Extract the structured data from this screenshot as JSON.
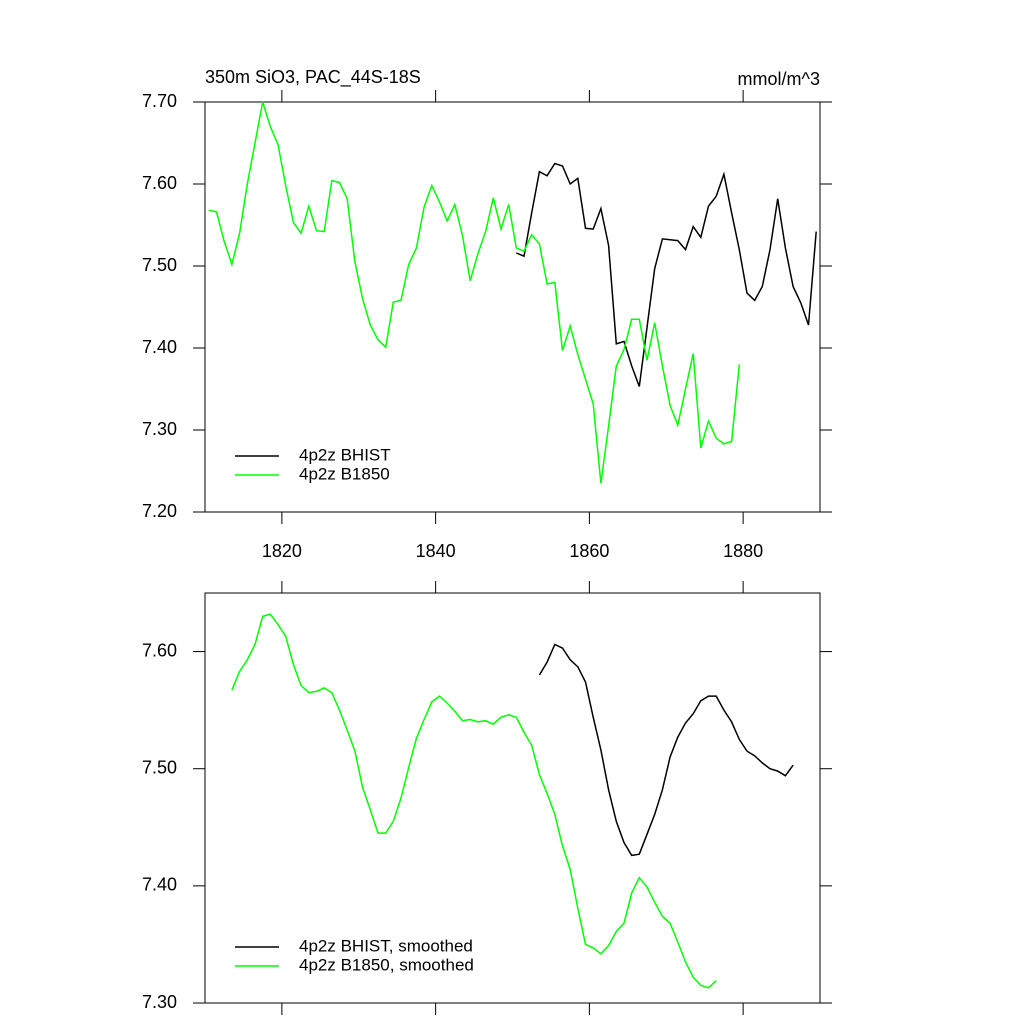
{
  "chart_data": [
    {
      "type": "line",
      "title": "350m SiO3, PAC_44S-18S",
      "units": "mmol/m^3",
      "xlim": [
        1810,
        1890
      ],
      "xticks": [
        1820,
        1840,
        1860,
        1880
      ],
      "ylim": [
        7.2,
        7.7
      ],
      "yticks": [
        {
          "value": 7.2,
          "label": "7.20"
        },
        {
          "value": 7.3,
          "label": "7.30"
        },
        {
          "value": 7.4,
          "label": "7.40"
        },
        {
          "value": 7.5,
          "label": "7.50"
        },
        {
          "value": 7.6,
          "label": "7.60"
        },
        {
          "value": 7.7,
          "label": "7.70"
        }
      ],
      "legend": "lower left",
      "series": [
        {
          "name": "4p2z BHIST",
          "color": "#000000",
          "x": [
            1850.5,
            1851.5,
            1852.5,
            1853.5,
            1854.5,
            1855.5,
            1856.5,
            1857.5,
            1858.5,
            1859.5,
            1860.5,
            1861.5,
            1862.5,
            1863.5,
            1864.5,
            1865.5,
            1866.5,
            1867.5,
            1868.5,
            1869.5,
            1870.5,
            1871.5,
            1872.5,
            1873.5,
            1874.5,
            1875.5,
            1876.5,
            1877.5,
            1878.5,
            1879.5,
            1880.5,
            1881.5,
            1882.5,
            1883.5,
            1884.5,
            1885.5,
            1886.5,
            1887.5,
            1888.5,
            1889.5
          ],
          "values": [
            7.516,
            7.512,
            7.565,
            7.615,
            7.61,
            7.625,
            7.622,
            7.6,
            7.607,
            7.546,
            7.545,
            7.57,
            7.525,
            7.405,
            7.408,
            7.378,
            7.353,
            7.425,
            7.497,
            7.533,
            7.532,
            7.531,
            7.52,
            7.548,
            7.535,
            7.573,
            7.585,
            7.612,
            7.565,
            7.52,
            7.467,
            7.458,
            7.475,
            7.52,
            7.582,
            7.522,
            7.475,
            7.455,
            7.428,
            7.542
          ]
        },
        {
          "name": "4p2z B1850",
          "color": "#00ff00",
          "x": [
            1810.5,
            1811.5,
            1812.5,
            1813.5,
            1814.5,
            1815.5,
            1816.5,
            1817.5,
            1818.5,
            1819.5,
            1820.5,
            1821.5,
            1822.5,
            1823.5,
            1824.5,
            1825.5,
            1826.5,
            1827.5,
            1828.5,
            1829.5,
            1830.5,
            1831.5,
            1832.5,
            1833.5,
            1834.5,
            1835.5,
            1836.5,
            1837.5,
            1838.5,
            1839.5,
            1840.5,
            1841.5,
            1842.5,
            1843.5,
            1844.5,
            1845.5,
            1846.5,
            1847.5,
            1848.5,
            1849.5,
            1850.5,
            1851.5,
            1852.5,
            1853.5,
            1854.5,
            1855.5,
            1856.5,
            1857.5,
            1858.5,
            1859.5,
            1860.5,
            1861.5,
            1862.5,
            1863.5,
            1864.5,
            1865.5,
            1866.5,
            1867.5,
            1868.5,
            1869.5,
            1870.5,
            1871.5,
            1872.5,
            1873.5,
            1874.5,
            1875.5,
            1876.5,
            1877.5,
            1878.5,
            1879.5
          ],
          "values": [
            7.568,
            7.566,
            7.53,
            7.502,
            7.54,
            7.6,
            7.65,
            7.7,
            7.67,
            7.648,
            7.598,
            7.553,
            7.54,
            7.573,
            7.543,
            7.542,
            7.604,
            7.602,
            7.582,
            7.505,
            7.46,
            7.428,
            7.41,
            7.401,
            7.456,
            7.458,
            7.502,
            7.522,
            7.572,
            7.598,
            7.578,
            7.555,
            7.575,
            7.537,
            7.482,
            7.515,
            7.542,
            7.583,
            7.545,
            7.575,
            7.522,
            7.518,
            7.538,
            7.527,
            7.478,
            7.48,
            7.397,
            7.427,
            7.392,
            7.362,
            7.332,
            7.235,
            7.305,
            7.378,
            7.398,
            7.435,
            7.435,
            7.385,
            7.431,
            7.378,
            7.33,
            7.306,
            7.35,
            7.393,
            7.278,
            7.311,
            7.29,
            7.283,
            7.286,
            7.38
          ]
        }
      ]
    },
    {
      "type": "line",
      "xlim": [
        1810,
        1890
      ],
      "xticks": [
        1820,
        1840,
        1860,
        1880
      ],
      "ylim": [
        7.3,
        7.65
      ],
      "yticks": [
        {
          "value": 7.3,
          "label": "7.30"
        },
        {
          "value": 7.4,
          "label": "7.40"
        },
        {
          "value": 7.5,
          "label": "7.50"
        },
        {
          "value": 7.6,
          "label": "7.60"
        }
      ],
      "legend": "lower left",
      "series": [
        {
          "name": "4p2z BHIST, smoothed",
          "color": "#000000",
          "x": [
            1853.5,
            1854.5,
            1855.5,
            1856.5,
            1857.5,
            1858.5,
            1859.5,
            1860.5,
            1861.5,
            1862.5,
            1863.5,
            1864.5,
            1865.5,
            1866.5,
            1867.5,
            1868.5,
            1869.5,
            1870.5,
            1871.5,
            1872.5,
            1873.5,
            1874.5,
            1875.5,
            1876.5,
            1877.5,
            1878.5,
            1879.5,
            1880.5,
            1881.5,
            1882.5,
            1883.5,
            1884.5,
            1885.5,
            1886.5
          ],
          "values": [
            7.58,
            7.591,
            7.606,
            7.603,
            7.593,
            7.587,
            7.574,
            7.544,
            7.516,
            7.482,
            7.455,
            7.437,
            7.426,
            7.427,
            7.444,
            7.461,
            7.482,
            7.51,
            7.527,
            7.539,
            7.547,
            7.558,
            7.562,
            7.562,
            7.55,
            7.54,
            7.525,
            7.515,
            7.511,
            7.505,
            7.5,
            7.498,
            7.494,
            7.503
          ]
        },
        {
          "name": "4p2z B1850, smoothed",
          "color": "#00ff00",
          "x": [
            1813.5,
            1814.5,
            1815.5,
            1816.5,
            1817.5,
            1818.5,
            1819.5,
            1820.5,
            1821.5,
            1822.5,
            1823.5,
            1824.5,
            1825.5,
            1826.5,
            1827.5,
            1828.5,
            1829.5,
            1830.5,
            1831.5,
            1832.5,
            1833.5,
            1834.5,
            1835.5,
            1836.5,
            1837.5,
            1838.5,
            1839.5,
            1840.5,
            1841.5,
            1842.5,
            1843.5,
            1844.5,
            1845.5,
            1846.5,
            1847.5,
            1848.5,
            1849.5,
            1850.5,
            1851.5,
            1852.5,
            1853.5,
            1854.5,
            1855.5,
            1856.5,
            1857.5,
            1858.5,
            1859.5,
            1860.5,
            1861.5,
            1862.5,
            1863.5,
            1864.5,
            1865.5,
            1866.5,
            1867.5,
            1868.5,
            1869.5,
            1870.5,
            1871.5,
            1872.5,
            1873.5,
            1874.5,
            1875.5,
            1876.5
          ],
          "values": [
            7.567,
            7.583,
            7.593,
            7.606,
            7.63,
            7.632,
            7.623,
            7.613,
            7.589,
            7.571,
            7.565,
            7.566,
            7.569,
            7.565,
            7.55,
            7.533,
            7.515,
            7.484,
            7.465,
            7.445,
            7.445,
            7.455,
            7.475,
            7.501,
            7.526,
            7.542,
            7.557,
            7.562,
            7.556,
            7.549,
            7.541,
            7.542,
            7.54,
            7.541,
            7.538,
            7.544,
            7.546,
            7.544,
            7.531,
            7.52,
            7.495,
            7.479,
            7.461,
            7.434,
            7.414,
            7.381,
            7.35,
            7.347,
            7.342,
            7.349,
            7.361,
            7.368,
            7.394,
            7.407,
            7.399,
            7.386,
            7.374,
            7.368,
            7.352,
            7.335,
            7.322,
            7.315,
            7.313,
            7.319
          ]
        }
      ]
    }
  ]
}
